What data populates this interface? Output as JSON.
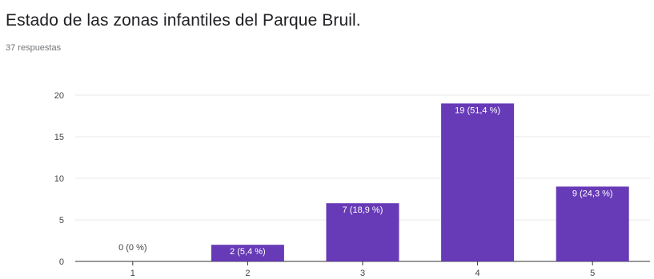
{
  "question": {
    "title": "Estado de las zonas infantiles del Parque Bruil.",
    "responses": "37 respuestas"
  },
  "colors": {
    "bar": "#673ab7",
    "label_inside": "#ffffff",
    "label_outside": "#444444",
    "grid": "#e8e8e8",
    "axis": "#333333"
  },
  "chart_data": {
    "type": "bar",
    "title": "Estado de las zonas infantiles del Parque Bruil.",
    "categories": [
      "1",
      "2",
      "3",
      "4",
      "5"
    ],
    "values": [
      0,
      2,
      7,
      19,
      9
    ],
    "data_labels": [
      "0 (0 %)",
      "2 (5,4 %)",
      "7 (18,9 %)",
      "19 (51,4 %)",
      "9 (24,3 %)"
    ],
    "xlabel": "",
    "ylabel": "",
    "ylim": [
      0,
      20
    ],
    "yticks": [
      0,
      5,
      10,
      15,
      20
    ],
    "grid": true,
    "legend": "none"
  }
}
